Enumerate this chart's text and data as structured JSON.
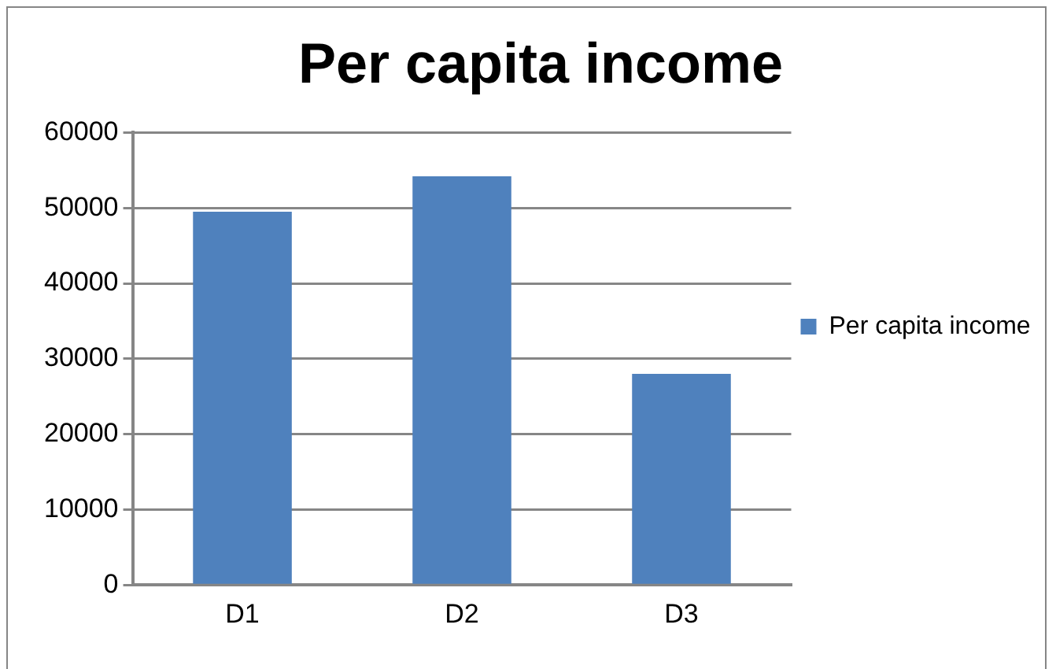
{
  "chart_data": {
    "type": "bar",
    "title": "Per capita income",
    "categories": [
      "D1",
      "D2",
      "D3"
    ],
    "series": [
      {
        "name": "Per capita income",
        "color": "#4f81bd",
        "values": [
          49500,
          54200,
          28000
        ]
      }
    ],
    "ylim": [
      0,
      60000
    ],
    "yticks": [
      0,
      10000,
      20000,
      30000,
      40000,
      50000,
      60000
    ],
    "grid": "y",
    "legend": "right"
  }
}
